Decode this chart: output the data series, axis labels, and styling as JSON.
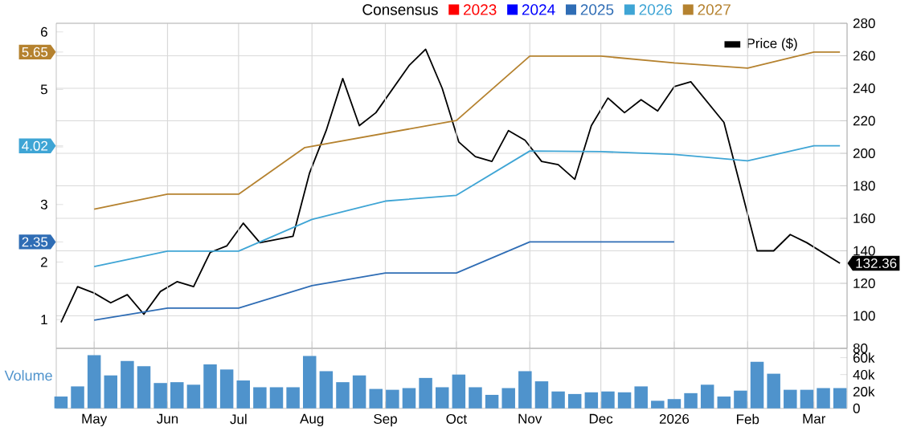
{
  "chart_data": [
    {
      "type": "line",
      "legend_title": "Consensus",
      "legend": "top",
      "grid": true,
      "tick_labels": "y",
      "xlim": [
        "2025-04-15",
        "2026-03-15"
      ],
      "xticks": [
        {
          "value": "2025-05-01",
          "label": null
        },
        {
          "value": "2025-06-01",
          "label": null
        },
        {
          "value": "2025-07-01",
          "label": null
        },
        {
          "value": "2025-08-01",
          "label": null
        },
        {
          "value": "2025-09-01",
          "label": null
        },
        {
          "value": "2025-10-01",
          "label": null
        },
        {
          "value": "2025-11-01",
          "label": null
        },
        {
          "value": "2025-12-01",
          "label": null
        },
        {
          "value": "2026-01-01",
          "label": null
        },
        {
          "value": "2026-02-01",
          "label": null
        },
        {
          "value": "2026-03-01",
          "label": null
        }
      ],
      "ylim": [
        0.5,
        6.15
      ],
      "yticks": [
        1,
        2,
        2.35,
        3,
        {
          "value": 4,
          "label": null
        },
        4.02,
        5,
        5.65,
        6
      ],
      "y2lim": [
        80,
        280
      ],
      "y2ticks": [
        80,
        100,
        120,
        140,
        160,
        180,
        200,
        220,
        240,
        260,
        280
      ],
      "series": [
        {
          "name": "2023",
          "color": "#ff0000"
        },
        {
          "name": "2024",
          "color": "#0000ff"
        },
        {
          "name": "2025",
          "color": "#2f6db5",
          "x": [
            "2025-05-01",
            "2025-06-01",
            "2025-07-01",
            "2025-08-01",
            "2025-09-01",
            "2025-10-01",
            "2025-11-01",
            "2026-01-01"
          ],
          "values": [
            0.99,
            1.2,
            1.2,
            1.59,
            1.81,
            1.81,
            2.35,
            2.35
          ]
        },
        {
          "name": "2026",
          "color": "#3fa5d5",
          "x": [
            "2025-05-01",
            "2025-06-01",
            "2025-07-01",
            "2025-08-01",
            "2025-09-01",
            "2025-10-01",
            "2025-11-01",
            "2025-12-01",
            "2026-01-01",
            "2026-02-01",
            "2026-03-01",
            "2026-03-12"
          ],
          "values": [
            1.92,
            2.19,
            2.19,
            2.74,
            3.06,
            3.16,
            3.93,
            3.92,
            3.87,
            3.76,
            4.02,
            4.02
          ]
        },
        {
          "name": "2027",
          "color": "#b5822f",
          "x": [
            "2025-05-01",
            "2025-06-01",
            "2025-07-01",
            "2025-07-29",
            "2025-10-01",
            "2025-11-01",
            "2025-12-01",
            "2026-01-01",
            "2026-02-01",
            "2026-03-01",
            "2026-03-12"
          ],
          "values": [
            2.92,
            3.18,
            3.18,
            3.99,
            4.46,
            5.58,
            5.58,
            5.46,
            5.37,
            5.65,
            5.65
          ]
        },
        {
          "name": "Price ($)",
          "color": "#000000",
          "axis": "y2",
          "x": [
            "2025-04-17",
            "2025-04-24",
            "2025-05-01",
            "2025-05-08",
            "2025-05-15",
            "2025-05-22",
            "2025-05-29",
            "2025-06-05",
            "2025-06-12",
            "2025-06-19",
            "2025-06-26",
            "2025-07-03",
            "2025-07-10",
            "2025-07-24",
            "2025-07-31",
            "2025-08-07",
            "2025-08-14",
            "2025-08-21",
            "2025-08-28",
            "2025-09-11",
            "2025-09-18",
            "2025-09-25",
            "2025-10-02",
            "2025-10-09",
            "2025-10-16",
            "2025-10-23",
            "2025-10-30",
            "2025-11-06",
            "2025-11-13",
            "2025-11-20",
            "2025-11-27",
            "2025-12-04",
            "2025-12-11",
            "2025-12-18",
            "2025-12-25",
            "2026-01-01",
            "2026-01-08",
            "2026-01-22",
            "2026-02-05",
            "2026-02-12",
            "2026-02-19",
            "2026-02-26",
            "2026-03-12"
          ],
          "values": [
            96,
            118,
            114,
            108,
            113,
            101,
            115,
            121,
            118,
            139,
            143,
            157,
            145,
            149,
            188,
            214,
            246,
            217,
            225,
            254,
            264,
            240,
            207,
            198,
            195,
            214,
            208,
            195,
            193,
            184,
            217,
            234,
            225,
            233,
            226,
            241,
            244,
            219,
            140,
            140,
            150,
            145,
            132.36
          ],
          "value_labels": [
            null,
            null,
            null,
            null,
            null,
            null,
            null,
            null,
            null,
            null,
            null,
            null,
            null,
            null,
            null,
            null,
            null,
            null,
            null,
            null,
            null,
            null,
            null,
            null,
            null,
            null,
            null,
            null,
            null,
            null,
            null,
            null,
            null,
            null,
            null,
            null,
            null,
            null,
            null,
            null,
            null,
            null,
            "132.36"
          ]
        }
      ]
    },
    {
      "type": "bar",
      "grid": "x",
      "xlim": [
        "2025-04-15",
        "2026-03-15"
      ],
      "xticks": [
        {
          "value": "2025-05-01",
          "label": "May"
        },
        {
          "value": "2025-06-01",
          "label": "Jun"
        },
        {
          "value": "2025-07-01",
          "label": "Jul"
        },
        {
          "value": "2025-08-01",
          "label": "Aug"
        },
        {
          "value": "2025-09-01",
          "label": "Sep"
        },
        {
          "value": "2025-10-01",
          "label": "Oct"
        },
        {
          "value": "2025-11-01",
          "label": "Nov"
        },
        {
          "value": "2025-12-01",
          "label": "Dec"
        },
        {
          "value": "2026-01-01",
          "label": "2026"
        },
        {
          "value": "2026-02-01",
          "label": "Feb"
        },
        {
          "value": "2026-03-01",
          "label": "Mar"
        }
      ],
      "ylim": [
        0,
        71000
      ],
      "yticks": [
        0,
        {
          "value": 20000,
          "label": "20k"
        },
        {
          "value": 40000,
          "label": "40k"
        },
        {
          "value": 60000,
          "label": "60k"
        }
      ],
      "x": [
        "2025-04-17",
        "2025-04-24",
        "2025-05-01",
        "2025-05-08",
        "2025-05-15",
        "2025-05-22",
        "2025-05-29",
        "2025-06-05",
        "2025-06-12",
        "2025-06-19",
        "2025-06-26",
        "2025-07-03",
        "2025-07-10",
        "2025-07-17",
        "2025-07-24",
        "2025-07-31",
        "2025-08-07",
        "2025-08-14",
        "2025-08-21",
        "2025-08-28",
        "2025-09-04",
        "2025-09-11",
        "2025-09-18",
        "2025-09-25",
        "2025-10-02",
        "2025-10-09",
        "2025-10-16",
        "2025-10-23",
        "2025-10-30",
        "2025-11-06",
        "2025-11-13",
        "2025-11-20",
        "2025-11-27",
        "2025-12-04",
        "2025-12-11",
        "2025-12-18",
        "2025-12-25",
        "2026-01-01",
        "2026-01-08",
        "2026-01-15",
        "2026-01-22",
        "2026-01-29",
        "2026-02-05",
        "2026-02-12",
        "2026-02-19",
        "2026-02-26",
        "2026-03-05",
        "2026-03-12"
      ],
      "series": [
        {
          "name": "Volume",
          "color": "#4f93cc",
          "values": [
            14000,
            26000,
            63000,
            39000,
            56000,
            50000,
            30000,
            31000,
            28000,
            52000,
            46000,
            33000,
            25000,
            25000,
            25000,
            62000,
            44000,
            31000,
            39000,
            23000,
            22000,
            24000,
            36000,
            25000,
            40000,
            25000,
            16000,
            24000,
            44000,
            32000,
            20000,
            17000,
            19000,
            20000,
            19000,
            26000,
            9000,
            11000,
            18000,
            28000,
            14000,
            21000,
            55000,
            41000,
            22000,
            22000,
            24000,
            24000
          ]
        }
      ]
    }
  ]
}
